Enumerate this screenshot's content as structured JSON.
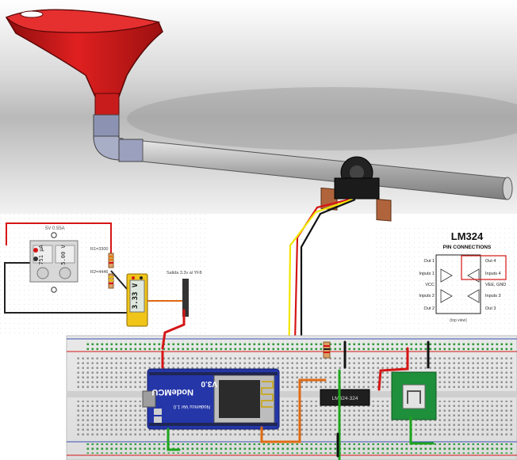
{
  "colors": {
    "funnel_red": "#c41a1a",
    "pipe_grey": "#bdbdbd",
    "copper": "#b0643c",
    "wire_red": "#d61515",
    "wire_yellow": "#f2e600",
    "wire_black": "#111111",
    "wire_green": "#1ea51e",
    "wire_orange": "#e06a12",
    "nodemcu_blue": "#2436a8",
    "breadboard_green_pins": "#2e9a3a",
    "board_green": "#1e8f3b"
  },
  "circuit_panel": {
    "supply_label": "5V 0.55A",
    "supply_current": "751 µA",
    "supply_voltage": "5.00 V",
    "resistor1_label": "R1=3300",
    "resistor2_label": "R2=4446",
    "multimeter_reading": "3.33 V",
    "output_label": "Salida 3.3v al YF8"
  },
  "nodemcu": {
    "title": "NodeMCU",
    "version": "V3.0",
    "pin_note": "Nodemcu Ver 1.0"
  },
  "ic_chip": {
    "label": "LM324-324"
  },
  "datasheet": {
    "title": "LM324",
    "subtitle": "PIN CONNECTIONS",
    "left_pins": [
      "Out 1",
      "Inputs 1",
      "VCC",
      "Inputs 2",
      "Out 2"
    ],
    "right_pins": [
      "Out 4",
      "Inputs 4",
      "VEE, GND",
      "Inputs 3",
      "Out 3"
    ],
    "view": "(top view)"
  }
}
